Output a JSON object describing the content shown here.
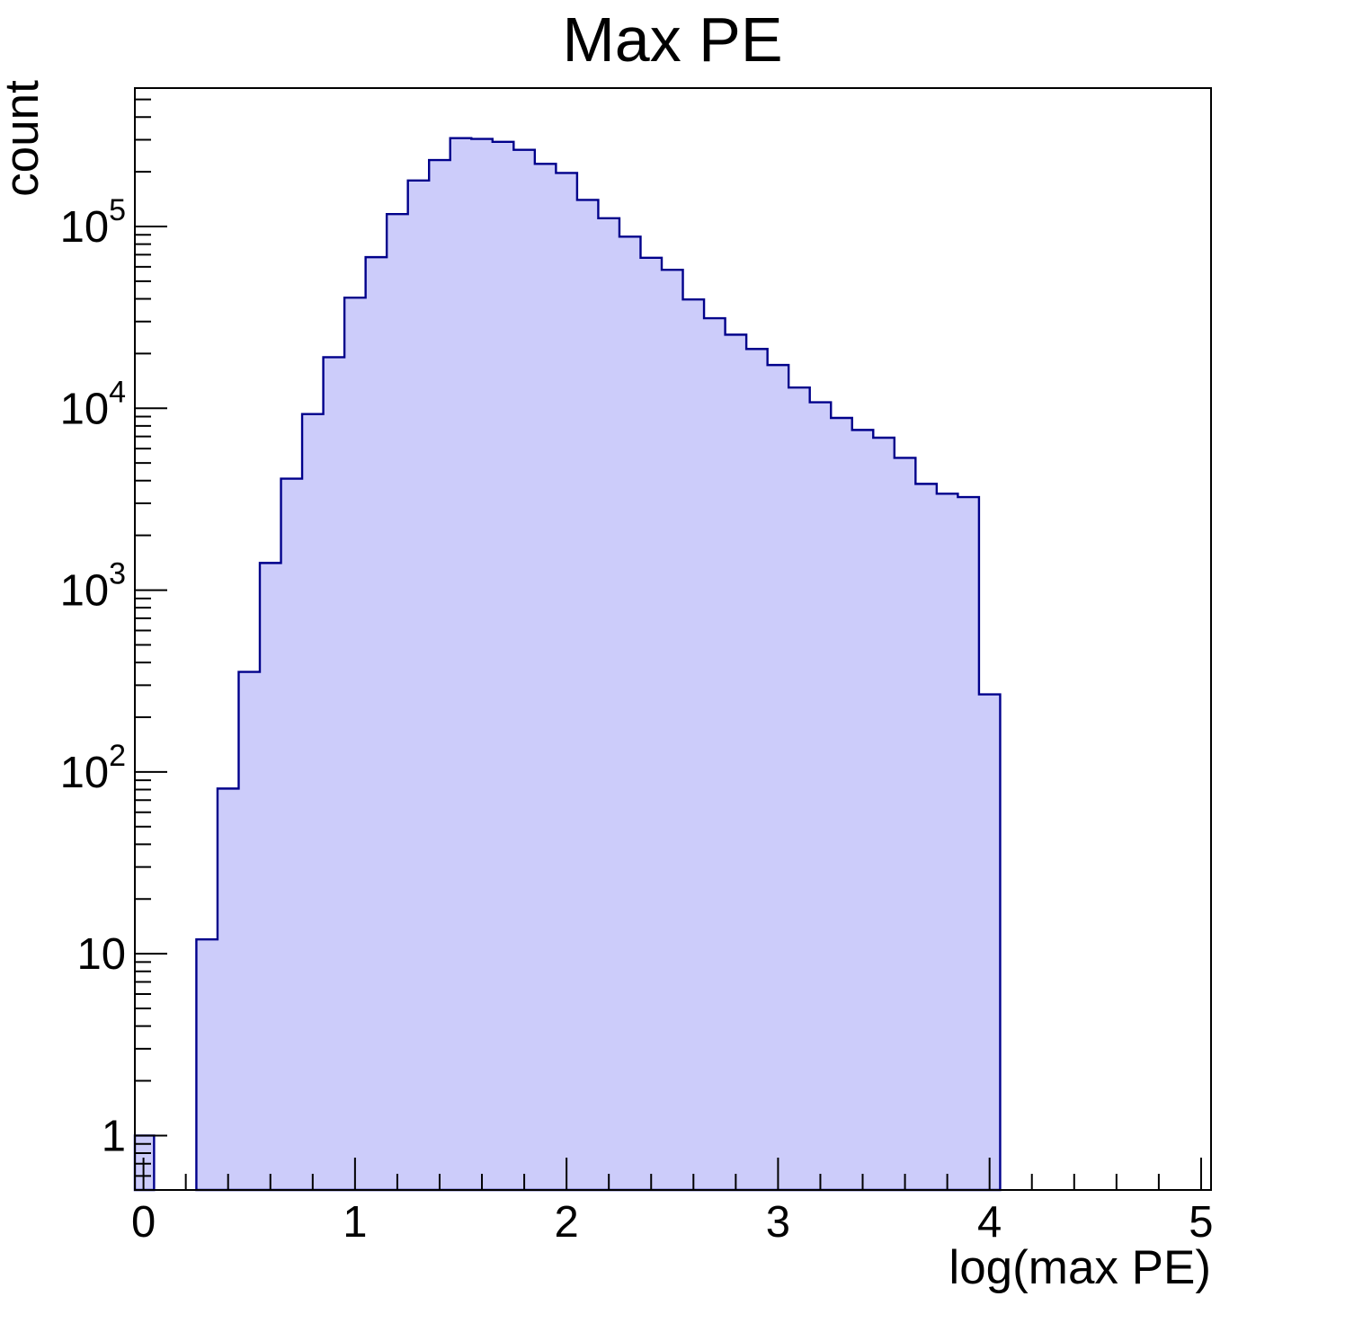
{
  "chart_data": {
    "type": "histogram",
    "title": "Max PE",
    "xlabel": "log(max PE)",
    "ylabel": "count",
    "x_scale": "linear",
    "y_scale": "log",
    "x_range": [
      -0.0408,
      5.047
    ],
    "y_range": [
      0.502,
      577000
    ],
    "grid": false,
    "legend": false,
    "bin_width": 0.1,
    "bin_centers": [
      0.0,
      0.3,
      0.4,
      0.5,
      0.6,
      0.7,
      0.8,
      0.9,
      1.0,
      1.1,
      1.2,
      1.3,
      1.4,
      1.5,
      1.6,
      1.7,
      1.8,
      1.9,
      2.0,
      2.1,
      2.2,
      2.3,
      2.4,
      2.5,
      2.6,
      2.7,
      2.8,
      2.9,
      3.0,
      3.1,
      3.2,
      3.3,
      3.4,
      3.5,
      3.6,
      3.7,
      3.8,
      3.9,
      4.0
    ],
    "counts": [
      1,
      12,
      81,
      355,
      1410,
      4100,
      9300,
      19100,
      40600,
      67800,
      117000,
      179000,
      232000,
      306000,
      303000,
      292000,
      264000,
      221000,
      197000,
      140000,
      111000,
      87900,
      67300,
      57800,
      39700,
      31300,
      25400,
      21200,
      17300,
      13000,
      10800,
      8850,
      7600,
      6890,
      5340,
      3840,
      3390,
      3250,
      267
    ],
    "x_ticks": [
      {
        "v": 0,
        "label": "0"
      },
      {
        "v": 1,
        "label": "1"
      },
      {
        "v": 2,
        "label": "2"
      },
      {
        "v": 3,
        "label": "3"
      },
      {
        "v": 4,
        "label": "4"
      },
      {
        "v": 5,
        "label": "5"
      }
    ],
    "x_minor_step": 0.2,
    "y_ticks": [
      {
        "exp": 0,
        "base": "1",
        "sup": ""
      },
      {
        "exp": 1,
        "base": "10",
        "sup": ""
      },
      {
        "exp": 2,
        "base": "10",
        "sup": "2"
      },
      {
        "exp": 3,
        "base": "10",
        "sup": "3"
      },
      {
        "exp": 4,
        "base": "10",
        "sup": "4"
      },
      {
        "exp": 5,
        "base": "10",
        "sup": "5"
      }
    ],
    "colors": {
      "fill": "#ccccfa",
      "line": "#00008b",
      "axis": "#000000",
      "background": "#ffffff"
    }
  }
}
